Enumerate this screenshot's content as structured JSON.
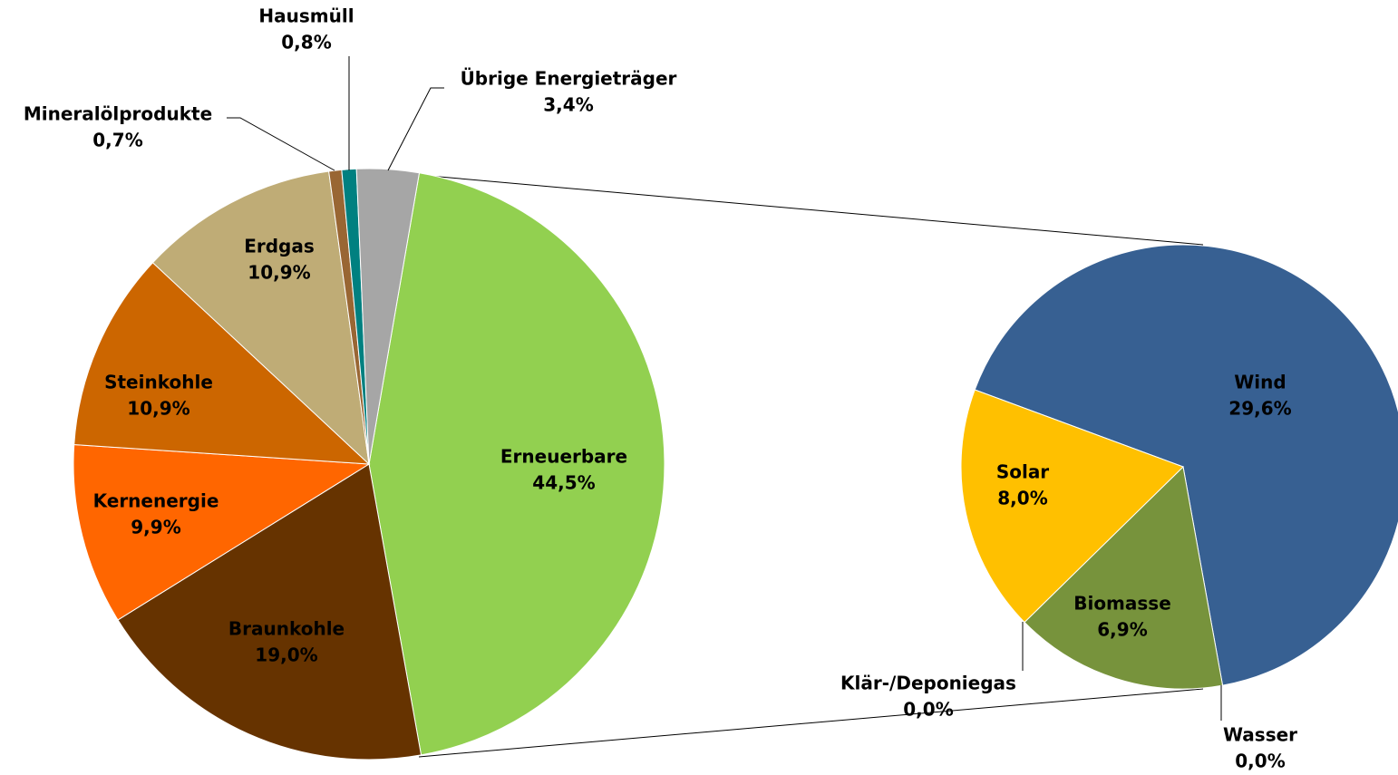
{
  "chart_data": [
    {
      "type": "pie",
      "categories": [
        "Erneuerbare",
        "Braunkohle",
        "Kernenergie",
        "Steinkohle",
        "Erdgas",
        "Mineralölprodukte",
        "Hausmüll",
        "Übrige Energieträger"
      ],
      "values": [
        44.5,
        19.0,
        9.9,
        10.9,
        10.9,
        0.7,
        0.8,
        3.4
      ],
      "value_labels": [
        "44,5%",
        "19,0%",
        "9,9%",
        "10,9%",
        "10,9%",
        "0,7%",
        "0,8%",
        "3,4%"
      ],
      "colors": [
        "#92d050",
        "#663300",
        "#ff6600",
        "#cc6600",
        "#bfac76",
        "#996633",
        "#008080",
        "#a6a6a6"
      ]
    },
    {
      "type": "pie",
      "categories": [
        "Wind",
        "Wasser",
        "Biomasse",
        "Klär-/Deponiegas",
        "Solar"
      ],
      "values": [
        29.6,
        0.0,
        6.9,
        0.0,
        8.0
      ],
      "value_labels": [
        "29,6%",
        "0,0%",
        "6,9%",
        "0,0%",
        "8,0%"
      ],
      "colors": [
        "#376092",
        "#4f81bd",
        "#77933c",
        "#9bbb59",
        "#ffc000"
      ]
    }
  ]
}
